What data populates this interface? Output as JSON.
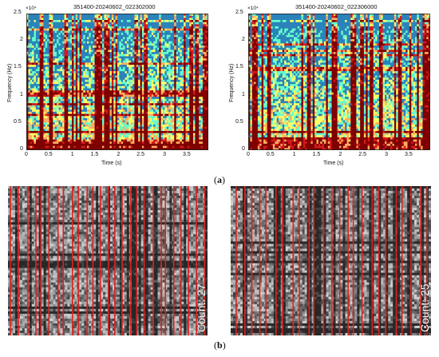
{
  "chart_data": [
    {
      "type": "heatmap",
      "title": "351400-20240602_022302000",
      "xlabel": "Time (s)",
      "ylabel": "Frequency (Hz)",
      "y_exponent": "×10⁴",
      "xlim": [
        0,
        3.95
      ],
      "ylim": [
        0,
        25000
      ],
      "x_ticks": [
        "0",
        "0.5",
        "1",
        "1.5",
        "2",
        "2.5",
        "3",
        "3.5"
      ],
      "y_ticks": [
        "0",
        "0.5",
        "1",
        "1.5",
        "2",
        "2.5"
      ],
      "colormap": [
        "#7f0000",
        "#d7191c",
        "#fdae61",
        "#ffff66",
        "#66ffcc",
        "#2b83ba"
      ]
    },
    {
      "type": "heatmap",
      "title": "351400-20240602_022306000",
      "xlabel": "Time (s)",
      "ylabel": "Frequency (Hz)",
      "y_exponent": "×10⁴",
      "xlim": [
        0,
        3.95
      ],
      "ylim": [
        0,
        25000
      ],
      "x_ticks": [
        "0",
        "0.5",
        "1",
        "1.5",
        "2",
        "2.5",
        "3",
        "3.5"
      ],
      "y_ticks": [
        "0",
        "0.5",
        "1",
        "1.5",
        "2",
        "2.5"
      ],
      "colormap": [
        "#7f0000",
        "#d7191c",
        "#fdae61",
        "#ffff66",
        "#66ffcc",
        "#2b83ba"
      ]
    },
    {
      "type": "heatmap",
      "count_label": "Count: 27",
      "detected_lines": 27,
      "line_color": "#e02020"
    },
    {
      "type": "heatmap",
      "count_label": "Count: 25",
      "detected_lines": 25,
      "line_color": "#e02020"
    }
  ],
  "captions": {
    "a": {
      "letter": "a",
      "open": "(",
      "close": ")"
    },
    "b": {
      "letter": "b",
      "open": "(",
      "close": ")"
    }
  }
}
